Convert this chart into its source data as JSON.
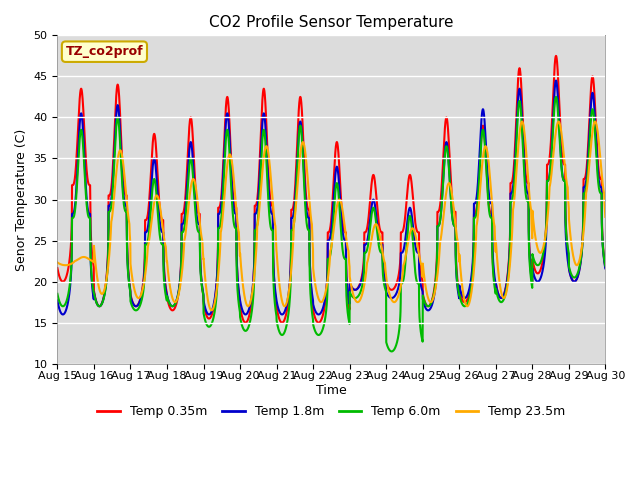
{
  "title": "CO2 Profile Sensor Temperature",
  "ylabel": "Senor Temperature (C)",
  "xlabel": "Time",
  "ylim": [
    10,
    50
  ],
  "x_tick_labels": [
    "Aug 15",
    "Aug 16",
    "Aug 17",
    "Aug 18",
    "Aug 19",
    "Aug 20",
    "Aug 21",
    "Aug 22",
    "Aug 23",
    "Aug 24",
    "Aug 25",
    "Aug 26",
    "Aug 27",
    "Aug 28",
    "Aug 29",
    "Aug 30"
  ],
  "bg_color": "#dcdcdc",
  "legend_label": "TZ_co2prof",
  "series_colors": [
    "#ff0000",
    "#0000cc",
    "#00bb00",
    "#ffaa00"
  ],
  "series_labels": [
    "Temp 0.35m",
    "Temp 1.8m",
    "Temp 6.0m",
    "Temp 23.5m"
  ],
  "line_width": 1.5,
  "yticks": [
    10,
    15,
    20,
    25,
    30,
    35,
    40,
    45,
    50
  ]
}
